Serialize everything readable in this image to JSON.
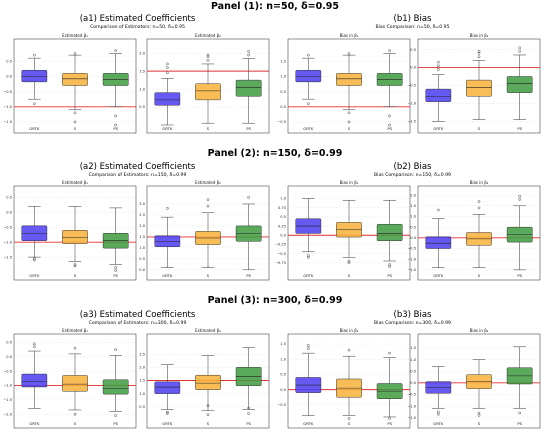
{
  "panels": [
    {
      "title": "Panel (1): n=50, δ=0.95",
      "left": {
        "title": "(a1) Estimated Coefficients",
        "caption": "Comparison of Estimators: n=50, δ=0.95"
      },
      "right": {
        "title": "(b1) Bias",
        "caption": "Bias Comparison: n=50, δ=0.95"
      }
    },
    {
      "title": "Panel (2): n=150, δ=0.99",
      "left": {
        "title": "(a2) Estimated Coefficients",
        "caption": "Comparison of Estimators: n=150, δ=0.99"
      },
      "right": {
        "title": "(b2) Bias",
        "caption": "Bias Comparison: n=150, δ=0.99"
      }
    },
    {
      "title": "Panel (3): n=300, δ=0.99",
      "left": {
        "title": "(a3) Estimated Coefficients",
        "caption": "Comparison of Estimators: n=300, δ=0.99"
      },
      "right": {
        "title": "(b3) Bias",
        "caption": "Bias Comparison: n=300, δ=0.99"
      }
    }
  ],
  "colors": {
    "GRTK": "#4a3cf0",
    "S": "#f7b13a",
    "PS": "#3e9a3e",
    "refline": "#e03030"
  },
  "chart_data": [
    {
      "type": "box",
      "title": "Estimated β₁",
      "categories": [
        "GRTK",
        "S",
        "PS"
      ],
      "ylim": [
        -1.6,
        1.0
      ],
      "yticks": [
        0.5,
        0.0,
        -0.5,
        -1.0,
        -1.5
      ],
      "ytick_labels": [
        "0.5",
        "0.0",
        "−0.5",
        "−1.0",
        "−1.5"
      ],
      "refline": -1.0,
      "boxes": [
        {
          "min": -0.75,
          "q1": -0.18,
          "med": 0.0,
          "q3": 0.2,
          "max": 0.6,
          "outliers": [
            -0.9,
            0.7
          ]
        },
        {
          "min": -1.1,
          "q1": -0.3,
          "med": -0.08,
          "q3": 0.1,
          "max": 0.7,
          "outliers": [
            -1.2,
            -1.5,
            0.75
          ]
        },
        {
          "min": -1.0,
          "q1": -0.3,
          "med": -0.1,
          "q3": 0.1,
          "max": 0.75,
          "outliers": [
            -1.3,
            -1.6,
            0.85
          ]
        }
      ]
    },
    {
      "type": "box",
      "title": "Estimated β₂",
      "categories": [
        "GRTK",
        "S",
        "PS"
      ],
      "ylim": [
        0.0,
        2.2
      ],
      "yticks": [
        2.0,
        1.5,
        1.0,
        0.5
      ],
      "ytick_labels": [
        "2.0",
        "1.5",
        "1.0",
        "0.5"
      ],
      "refline": 1.5,
      "boxes": [
        {
          "min": 0.0,
          "q1": 0.55,
          "med": 0.7,
          "q3": 0.9,
          "max": 1.3,
          "outliers": [
            1.45,
            1.6,
            1.7
          ]
        },
        {
          "min": 0.05,
          "q1": 0.7,
          "med": 0.95,
          "q3": 1.15,
          "max": 1.7,
          "outliers": [
            1.8,
            1.9,
            1.95
          ]
        },
        {
          "min": 0.05,
          "q1": 0.8,
          "med": 1.05,
          "q3": 1.25,
          "max": 1.85,
          "outliers": [
            1.95,
            2.05
          ]
        }
      ]
    },
    {
      "type": "box",
      "title": "Bias in β₁",
      "categories": [
        "GRTK",
        "S",
        "PS"
      ],
      "ylim": [
        -0.6,
        2.0
      ],
      "yticks": [
        1.5,
        1.0,
        0.5,
        0.0,
        -0.5
      ],
      "ytick_labels": [
        "1.5",
        "1.0",
        "0.5",
        "0.0",
        "−0.5"
      ],
      "refline": 0.0,
      "boxes": [
        {
          "min": 0.25,
          "q1": 0.82,
          "med": 1.0,
          "q3": 1.2,
          "max": 1.6,
          "outliers": [
            0.1,
            1.7
          ]
        },
        {
          "min": -0.1,
          "q1": 0.7,
          "med": 0.92,
          "q3": 1.1,
          "max": 1.7,
          "outliers": [
            -0.2,
            -0.5,
            1.75
          ]
        },
        {
          "min": 0.0,
          "q1": 0.7,
          "med": 0.9,
          "q3": 1.1,
          "max": 1.75,
          "outliers": [
            -0.3,
            -0.6,
            1.85
          ]
        }
      ]
    },
    {
      "type": "box",
      "title": "Bias in β₂",
      "categories": [
        "GRTK",
        "S",
        "PS"
      ],
      "ylim": [
        -1.6,
        0.6
      ],
      "yticks": [
        0.5,
        0.0,
        -0.5,
        -1.0,
        -1.5
      ],
      "ytick_labels": [
        "0.5",
        "0.0",
        "−0.5",
        "−1.0",
        "−1.5"
      ],
      "refline": 0.0,
      "boxes": [
        {
          "min": -1.5,
          "q1": -0.95,
          "med": -0.8,
          "q3": -0.6,
          "max": -0.2,
          "outliers": [
            -0.05,
            0.05,
            0.15
          ]
        },
        {
          "min": -1.45,
          "q1": -0.8,
          "med": -0.55,
          "q3": -0.35,
          "max": 0.2,
          "outliers": [
            0.3,
            0.4,
            0.45
          ]
        },
        {
          "min": -1.45,
          "q1": -0.7,
          "med": -0.45,
          "q3": -0.25,
          "max": 0.35,
          "outliers": [
            0.45,
            0.55
          ]
        }
      ]
    },
    {
      "type": "box",
      "title": "Estimated β₁",
      "categories": [
        "GRTK",
        "S",
        "PS"
      ],
      "ylim": [
        -2.0,
        0.65
      ],
      "yticks": [
        0.5,
        0.0,
        -0.5,
        -1.0,
        -1.5
      ],
      "ytick_labels": [
        "0.5",
        "0.0",
        "−0.5",
        "−1.0",
        "−1.5"
      ],
      "refline": -1.0,
      "boxes": [
        {
          "min": -1.5,
          "q1": -0.95,
          "med": -0.7,
          "q3": -0.45,
          "max": 0.2,
          "outliers": [
            -1.55,
            -1.6
          ]
        },
        {
          "min": -1.65,
          "q1": -1.05,
          "med": -0.85,
          "q3": -0.6,
          "max": 0.2,
          "outliers": [
            -1.75,
            -1.8
          ]
        },
        {
          "min": -1.75,
          "q1": -1.2,
          "med": -0.95,
          "q3": -0.7,
          "max": 0.15,
          "outliers": [
            -1.85,
            -1.95
          ]
        }
      ]
    },
    {
      "type": "box",
      "title": "Estimated β₂",
      "categories": [
        "GRTK",
        "S",
        "PS"
      ],
      "ylim": [
        -0.1,
        3.5
      ],
      "yticks": [
        3.0,
        2.5,
        2.0,
        1.5,
        1.0,
        0.5,
        0.0
      ],
      "ytick_labels": [
        "3.0",
        "2.5",
        "2.0",
        "1.5",
        "1.0",
        "0.5",
        "0.0"
      ],
      "refline": 1.5,
      "boxes": [
        {
          "min": 0.1,
          "q1": 1.05,
          "med": 1.3,
          "q3": 1.55,
          "max": 2.4,
          "outliers": [
            2.8
          ]
        },
        {
          "min": 0.1,
          "q1": 1.15,
          "med": 1.45,
          "q3": 1.75,
          "max": 2.6,
          "outliers": [
            2.9,
            3.2
          ]
        },
        {
          "min": 0.0,
          "q1": 1.3,
          "med": 1.65,
          "q3": 2.0,
          "max": 3.0,
          "outliers": [
            3.3
          ]
        }
      ]
    },
    {
      "type": "box",
      "title": "Bias in β₁",
      "categories": [
        "GRTK",
        "S",
        "PS"
      ],
      "ylim": [
        -1.0,
        1.15
      ],
      "yticks": [
        1.0,
        0.75,
        0.5,
        0.25,
        0.0,
        -0.25,
        -0.5,
        -0.75
      ],
      "ytick_labels": [
        "1.0",
        "0.75",
        "0.5",
        "0.25",
        "0.0",
        "−0.25",
        "−0.5",
        "−0.75"
      ],
      "refline": 0.0,
      "boxes": [
        {
          "min": -0.45,
          "q1": 0.05,
          "med": 0.25,
          "q3": 0.45,
          "max": 1.0,
          "outliers": [
            -0.55,
            -0.6
          ]
        },
        {
          "min": -0.6,
          "q1": -0.05,
          "med": 0.15,
          "q3": 0.35,
          "max": 0.95,
          "outliers": [
            -0.7,
            -0.75
          ]
        },
        {
          "min": -0.7,
          "q1": -0.15,
          "med": 0.05,
          "q3": 0.3,
          "max": 0.95,
          "outliers": [
            -0.8,
            -0.85
          ]
        }
      ]
    },
    {
      "type": "box",
      "title": "Bias in β₂",
      "categories": [
        "GRTK",
        "S",
        "PS"
      ],
      "ylim": [
        -1.6,
        2.1
      ],
      "yticks": [
        2.0,
        1.5,
        1.0,
        0.5,
        0.0,
        -0.5,
        -1.0,
        -1.5
      ],
      "ytick_labels": [
        "2.0",
        "1.5",
        "1.0",
        "0.5",
        "0.0",
        "−0.5",
        "−1.0",
        "−1.5"
      ],
      "refline": 0.0,
      "boxes": [
        {
          "min": -1.4,
          "q1": -0.5,
          "med": -0.25,
          "q3": 0.05,
          "max": 0.9,
          "outliers": [
            1.3
          ]
        },
        {
          "min": -1.4,
          "q1": -0.35,
          "med": -0.05,
          "q3": 0.25,
          "max": 1.1,
          "outliers": [
            1.4,
            1.7
          ]
        },
        {
          "min": -1.5,
          "q1": -0.2,
          "med": 0.15,
          "q3": 0.5,
          "max": 1.5,
          "outliers": [
            1.8,
            1.95
          ]
        }
      ]
    },
    {
      "type": "box",
      "title": "Estimated β₁",
      "categories": [
        "GRTK",
        "S",
        "PS"
      ],
      "ylim": [
        -2.2,
        0.55
      ],
      "yticks": [
        0.5,
        0.0,
        -0.5,
        -1.0,
        -1.5,
        -2.0
      ],
      "ytick_labels": [
        "0.5",
        "0.0",
        "−0.5",
        "−1.0",
        "−1.5",
        "−2.0"
      ],
      "refline": -1.0,
      "boxes": [
        {
          "min": -1.8,
          "q1": -1.05,
          "med": -0.85,
          "q3": -0.6,
          "max": 0.2,
          "outliers": [
            0.35,
            0.45
          ]
        },
        {
          "min": -1.85,
          "q1": -1.2,
          "med": -0.95,
          "q3": -0.65,
          "max": 0.1,
          "outliers": [
            0.3,
            -2.0
          ]
        },
        {
          "min": -1.9,
          "q1": -1.3,
          "med": -1.1,
          "q3": -0.8,
          "max": 0.05,
          "outliers": [
            0.25,
            -2.05
          ]
        }
      ]
    },
    {
      "type": "box",
      "title": "Estimated β₂",
      "categories": [
        "GRTK",
        "S",
        "PS"
      ],
      "ylim": [
        0.0,
        3.0
      ],
      "yticks": [
        2.5,
        2.0,
        1.5,
        1.0,
        0.5
      ],
      "ytick_labels": [
        "2.5",
        "2.0",
        "1.5",
        "1.0",
        "0.5"
      ],
      "refline": 1.5,
      "boxes": [
        {
          "min": 0.4,
          "q1": 1.0,
          "med": 1.25,
          "q3": 1.45,
          "max": 2.1,
          "outliers": [
            0.25,
            0.3
          ]
        },
        {
          "min": 0.35,
          "q1": 1.15,
          "med": 1.4,
          "q3": 1.7,
          "max": 2.45,
          "outliers": [
            0.2,
            0.55
          ]
        },
        {
          "min": 0.4,
          "q1": 1.3,
          "med": 1.65,
          "q3": 2.0,
          "max": 2.75,
          "outliers": [
            0.25,
            0.45
          ]
        }
      ]
    },
    {
      "type": "box",
      "title": "Bias in β₁",
      "categories": [
        "GRTK",
        "S",
        "PS"
      ],
      "ylim": [
        -1.0,
        1.6
      ],
      "yticks": [
        1.5,
        1.0,
        0.5,
        0.0,
        -0.5
      ],
      "ytick_labels": [
        "1.5",
        "1.0",
        "0.5",
        "0.0",
        "−0.5"
      ],
      "refline": 0.0,
      "boxes": [
        {
          "min": -0.85,
          "q1": -0.1,
          "med": 0.15,
          "q3": 0.4,
          "max": 1.2,
          "outliers": [
            1.35,
            1.45
          ]
        },
        {
          "min": -0.85,
          "q1": -0.25,
          "med": 0.05,
          "q3": 0.35,
          "max": 1.1,
          "outliers": [
            1.3,
            -0.95
          ]
        },
        {
          "min": -0.9,
          "q1": -0.3,
          "med": -0.05,
          "q3": 0.2,
          "max": 1.05,
          "outliers": [
            1.2,
            -0.95
          ]
        }
      ]
    },
    {
      "type": "box",
      "title": "Bias in β₂",
      "categories": [
        "GRTK",
        "S",
        "PS"
      ],
      "ylim": [
        -1.6,
        1.8
      ],
      "yticks": [
        1.5,
        1.0,
        0.5,
        0.0,
        -0.5,
        -1.0,
        -1.5
      ],
      "ytick_labels": [
        "1.5",
        "1.0",
        "0.5",
        "0.0",
        "−0.5",
        "−1.0",
        "−1.5"
      ],
      "refline": 0.0,
      "boxes": [
        {
          "min": -1.1,
          "q1": -0.45,
          "med": -0.2,
          "q3": 0.05,
          "max": 0.7,
          "outliers": [
            -1.25,
            -1.35
          ]
        },
        {
          "min": -1.1,
          "q1": -0.25,
          "med": 0.05,
          "q3": 0.35,
          "max": 1.0,
          "outliers": [
            -1.3,
            -1.4
          ]
        },
        {
          "min": -1.1,
          "q1": -0.05,
          "med": 0.3,
          "q3": 0.65,
          "max": 1.55,
          "outliers": [
            -1.3
          ]
        }
      ]
    }
  ]
}
